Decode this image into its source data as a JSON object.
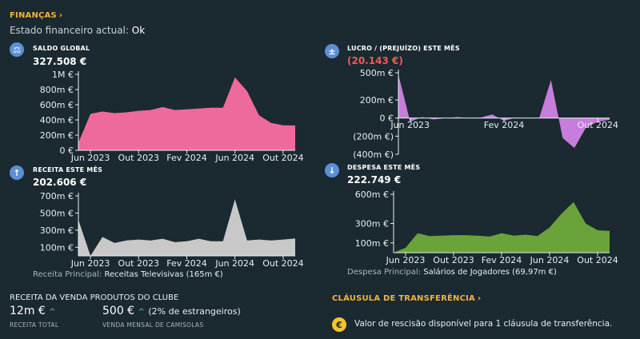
{
  "header": {
    "title": "FINANÇAS",
    "status_label": "Estado financeiro actual:",
    "status_value": "Ok"
  },
  "panels": {
    "balance": {
      "title": "SALDO GLOBAL",
      "value": "327.508 €",
      "icon": "scale-icon",
      "chart_data": {
        "type": "area",
        "color": "#ef6a9c",
        "x": [
          "2023-05",
          "2023-06",
          "2023-07",
          "2023-08",
          "2023-09",
          "2023-10",
          "2023-11",
          "2023-12",
          "2024-01",
          "2024-02",
          "2024-03",
          "2024-04",
          "2024-05",
          "2024-06",
          "2024-07",
          "2024-08",
          "2024-09",
          "2024-10",
          "2024-11"
        ],
        "y": [
          100000,
          480000,
          510000,
          490000,
          500000,
          520000,
          530000,
          570000,
          530000,
          540000,
          550000,
          560000,
          560000,
          960000,
          780000,
          460000,
          360000,
          330000,
          327508
        ],
        "ylim": [
          0,
          1000000
        ],
        "yticks": [
          "1M €",
          "800m €",
          "600m €",
          "400m €",
          "200m €",
          "0 €"
        ],
        "xticks": [
          "Jun 2023",
          "Out 2023",
          "Fev 2024",
          "Jun 2024",
          "Out 2024"
        ]
      }
    },
    "profit": {
      "title": "LUCRO / (PREJUÍZO) ESTE MÊS",
      "value": "(20.143 €)",
      "icon": "plus-minus-icon",
      "chart_data": {
        "type": "area",
        "color": "#c77ddb",
        "x": [
          "2023-05",
          "2023-06",
          "2023-07",
          "2023-08",
          "2023-09",
          "2023-10",
          "2023-11",
          "2023-12",
          "2024-01",
          "2024-02",
          "2024-03",
          "2024-04",
          "2024-05",
          "2024-06",
          "2024-07",
          "2024-08",
          "2024-09",
          "2024-10",
          "2024-11"
        ],
        "y": [
          480000,
          -40000,
          10000,
          -15000,
          0,
          10000,
          0,
          5000,
          40000,
          -30000,
          5000,
          0,
          0,
          420000,
          -220000,
          -330000,
          -100000,
          -40000,
          -20143
        ],
        "ylim": [
          -400000,
          500000
        ],
        "yticks": [
          "500m €",
          "200m €",
          "0 €",
          "(200m €)",
          "(400m €)"
        ],
        "xticks": [
          "Jun 2023",
          "Fev 2024",
          "Out 2024"
        ]
      }
    },
    "income": {
      "title": "RECEITA ESTE MÊS",
      "value": "202.606 €",
      "icon": "arrow-up-icon",
      "chart_data": {
        "type": "area",
        "color": "#c8c8c8",
        "x": [
          "2023-05",
          "2023-06",
          "2023-07",
          "2023-08",
          "2023-09",
          "2023-10",
          "2023-11",
          "2023-12",
          "2024-01",
          "2024-02",
          "2024-03",
          "2024-04",
          "2024-05",
          "2024-06",
          "2024-07",
          "2024-08",
          "2024-09",
          "2024-10",
          "2024-11"
        ],
        "y": [
          420000,
          0,
          220000,
          150000,
          180000,
          190000,
          180000,
          200000,
          160000,
          170000,
          200000,
          170000,
          170000,
          660000,
          180000,
          190000,
          180000,
          190000,
          202606
        ],
        "ylim": [
          0,
          700000
        ],
        "yticks": [
          "700m €",
          "500m €",
          "300m €",
          "100m €"
        ],
        "xticks": [
          "Jun 2023",
          "Out 2023",
          "Fev 2024",
          "Jun 2024",
          "Out 2024"
        ]
      },
      "note_label": "Receita Principal:",
      "note_value": "Receitas Televisivas (165m €)"
    },
    "expense": {
      "title": "DESPESA ESTE MÊS",
      "value": "222.749 €",
      "icon": "arrow-down-icon",
      "chart_data": {
        "type": "area",
        "color": "#6aa33a",
        "x": [
          "2023-05",
          "2023-06",
          "2023-07",
          "2023-08",
          "2023-09",
          "2023-10",
          "2023-11",
          "2023-12",
          "2024-01",
          "2024-02",
          "2024-03",
          "2024-04",
          "2024-05",
          "2024-06",
          "2024-07",
          "2024-08",
          "2024-09",
          "2024-10",
          "2024-11"
        ],
        "y": [
          0,
          50000,
          200000,
          170000,
          175000,
          180000,
          180000,
          175000,
          165000,
          200000,
          175000,
          185000,
          170000,
          260000,
          400000,
          520000,
          300000,
          230000,
          222749
        ],
        "ylim": [
          0,
          600000
        ],
        "yticks": [
          "600m €",
          "300m €",
          "100m €"
        ],
        "xticks": [
          "Jun 2023",
          "Out 2023",
          "Fev 2024",
          "Jun 2024",
          "Out 2024"
        ]
      },
      "note_label": "Despesa Principal:",
      "note_value": "Salários de Jogadores (69,97m €)"
    }
  },
  "merch": {
    "title": "RECEITA DA VENDA PRODUTOS DO CLUBE",
    "total_value": "12m €",
    "total_label": "RECEITA TOTAL",
    "monthly_value": "500 €",
    "monthly_extra": "(2% de estrangeiros)",
    "monthly_label": "VENDA MENSAL DE CAMISOLAS",
    "trend_icon": "^"
  },
  "transfer": {
    "title": "CLÁUSULA DE TRANSFERÊNCIA",
    "text": "Valor de rescisão disponível para 1 cláusula de transferência.",
    "icon_glyph": "€"
  }
}
